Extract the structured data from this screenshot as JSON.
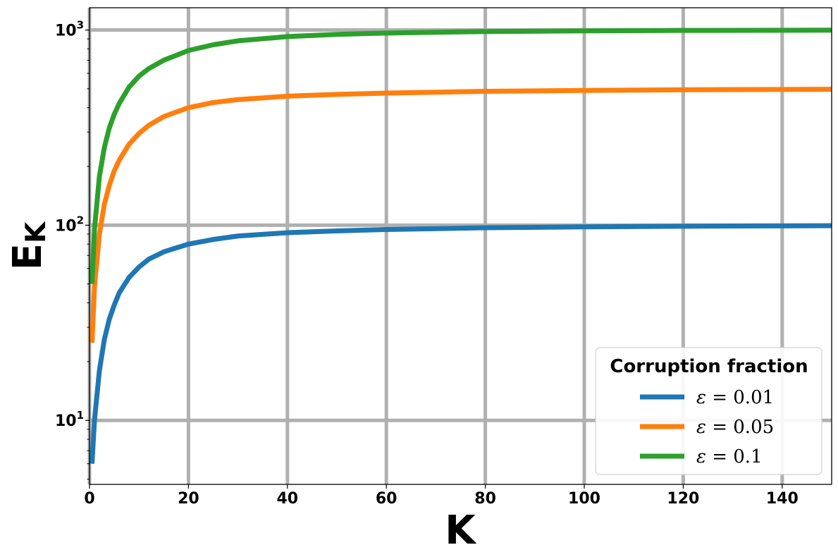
{
  "chart_data": {
    "type": "line",
    "xlabel": "K",
    "ylabel": {
      "main": "E",
      "sub": "K"
    },
    "xlim": [
      0,
      150
    ],
    "ylim": [
      4.7,
      1300
    ],
    "yscale": "log",
    "grid": true,
    "x_ticks": [
      0,
      20,
      40,
      60,
      80,
      100,
      120,
      140
    ],
    "y_ticks": [
      {
        "value": 10,
        "base": "10",
        "exp": "1"
      },
      {
        "value": 100,
        "base": "10",
        "exp": "2"
      },
      {
        "value": 1000,
        "base": "10",
        "exp": "3"
      }
    ],
    "legend": {
      "title": "Corruption fraction",
      "placement": "lower-right"
    },
    "series": [
      {
        "name": "ε = 0.01",
        "label": {
          "var": "ε",
          "eq": " = 0.01"
        },
        "color": "#1f77b4",
        "x": [
          0.5,
          1,
          2,
          3,
          4,
          5,
          6,
          8,
          10,
          12,
          15,
          20,
          25,
          30,
          40,
          50,
          60,
          80,
          100,
          120,
          150
        ],
        "values": [
          6,
          10,
          18,
          26,
          33,
          39,
          45,
          54,
          61,
          67,
          73,
          80,
          84.5,
          88,
          91.5,
          93.5,
          95,
          97,
          98,
          98.8,
          99.4
        ]
      },
      {
        "name": "ε = 0.05",
        "label": {
          "var": "ε",
          "eq": " = 0.05"
        },
        "color": "#ff7f0e",
        "x": [
          0.5,
          1,
          2,
          3,
          4,
          5,
          6,
          8,
          10,
          12,
          15,
          20,
          25,
          30,
          40,
          50,
          60,
          80,
          100,
          120,
          150
        ],
        "values": [
          25,
          48,
          90,
          128,
          160,
          190,
          215,
          260,
          295,
          325,
          360,
          400,
          425,
          440,
          458,
          468,
          475,
          485,
          490,
          494,
          497
        ]
      },
      {
        "name": "ε = 0.1",
        "label": {
          "var": "ε",
          "eq": " = 0.1"
        },
        "color": "#2ca02c",
        "x": [
          0.5,
          1,
          2,
          3,
          4,
          5,
          6,
          8,
          10,
          12,
          15,
          20,
          25,
          30,
          40,
          50,
          60,
          80,
          100,
          120,
          150
        ],
        "values": [
          50,
          95,
          178,
          250,
          315,
          370,
          420,
          510,
          580,
          635,
          700,
          785,
          840,
          880,
          925,
          950,
          965,
          982,
          990,
          995,
          998
        ]
      }
    ]
  }
}
